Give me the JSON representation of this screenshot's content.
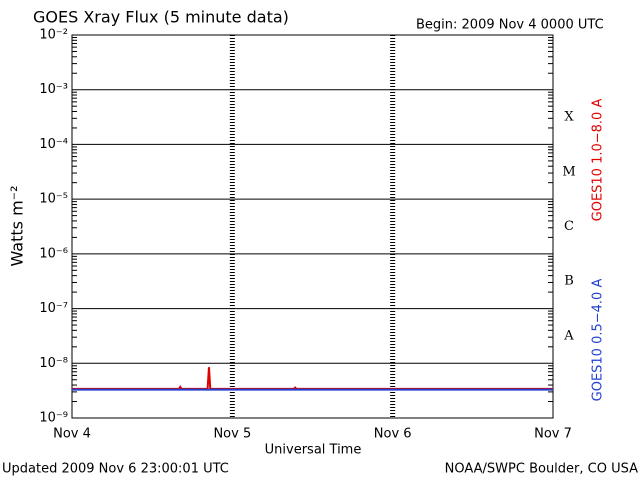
{
  "chart_data": {
    "type": "line",
    "title": "GOES Xray Flux (5 minute data)",
    "subtitle": "Begin:  2009 Nov 4 0000 UTC",
    "x_label": "Universal Time",
    "y_label": "Watts m⁻²",
    "footer_left": "Updated 2009 Nov  6 23:00:01 UTC",
    "footer_right": "NOAA/SWPC Boulder, CO USA",
    "log_y": true,
    "grid": true,
    "flare_classes": [
      "X",
      "M",
      "C",
      "B",
      "A"
    ],
    "xlim": [
      0,
      72
    ],
    "xticks": [
      {
        "value": 0,
        "label": "Nov 4"
      },
      {
        "value": 24,
        "label": "Nov 5"
      },
      {
        "value": 48,
        "label": "Nov 6"
      },
      {
        "value": 72,
        "label": "Nov 7"
      }
    ],
    "ylim": [
      1e-09,
      0.01
    ],
    "yticks": [
      {
        "value": 1e-09,
        "label": "10⁻⁹"
      },
      {
        "value": 1e-08,
        "label": "10⁻⁸"
      },
      {
        "value": 1e-07,
        "label": "10⁻⁷"
      },
      {
        "value": 1e-06,
        "label": "10⁻⁶"
      },
      {
        "value": 1e-05,
        "label": "10⁻⁵"
      },
      {
        "value": 0.0001,
        "label": "10⁻⁴"
      },
      {
        "value": 0.001,
        "label": "10⁻³"
      },
      {
        "value": 0.01,
        "label": "10⁻²"
      }
    ],
    "series": [
      {
        "name": "GOES10 1.0−8.0 A",
        "color": "#e00000",
        "x": [
          0,
          16.0,
          16.2,
          16.4,
          20.3,
          20.5,
          20.7,
          33.2,
          33.4,
          33.6,
          72
        ],
        "values": [
          3.4e-09,
          3.4e-09,
          3.7e-09,
          3.4e-09,
          3.4e-09,
          8.5e-09,
          3.4e-09,
          3.4e-09,
          3.6e-09,
          3.4e-09,
          3.4e-09
        ]
      },
      {
        "name": "GOES10 0.5−4.0 A",
        "color": "#2040d0",
        "x": [
          0,
          72
        ],
        "values": [
          3.3e-09,
          3.3e-09
        ]
      }
    ]
  }
}
